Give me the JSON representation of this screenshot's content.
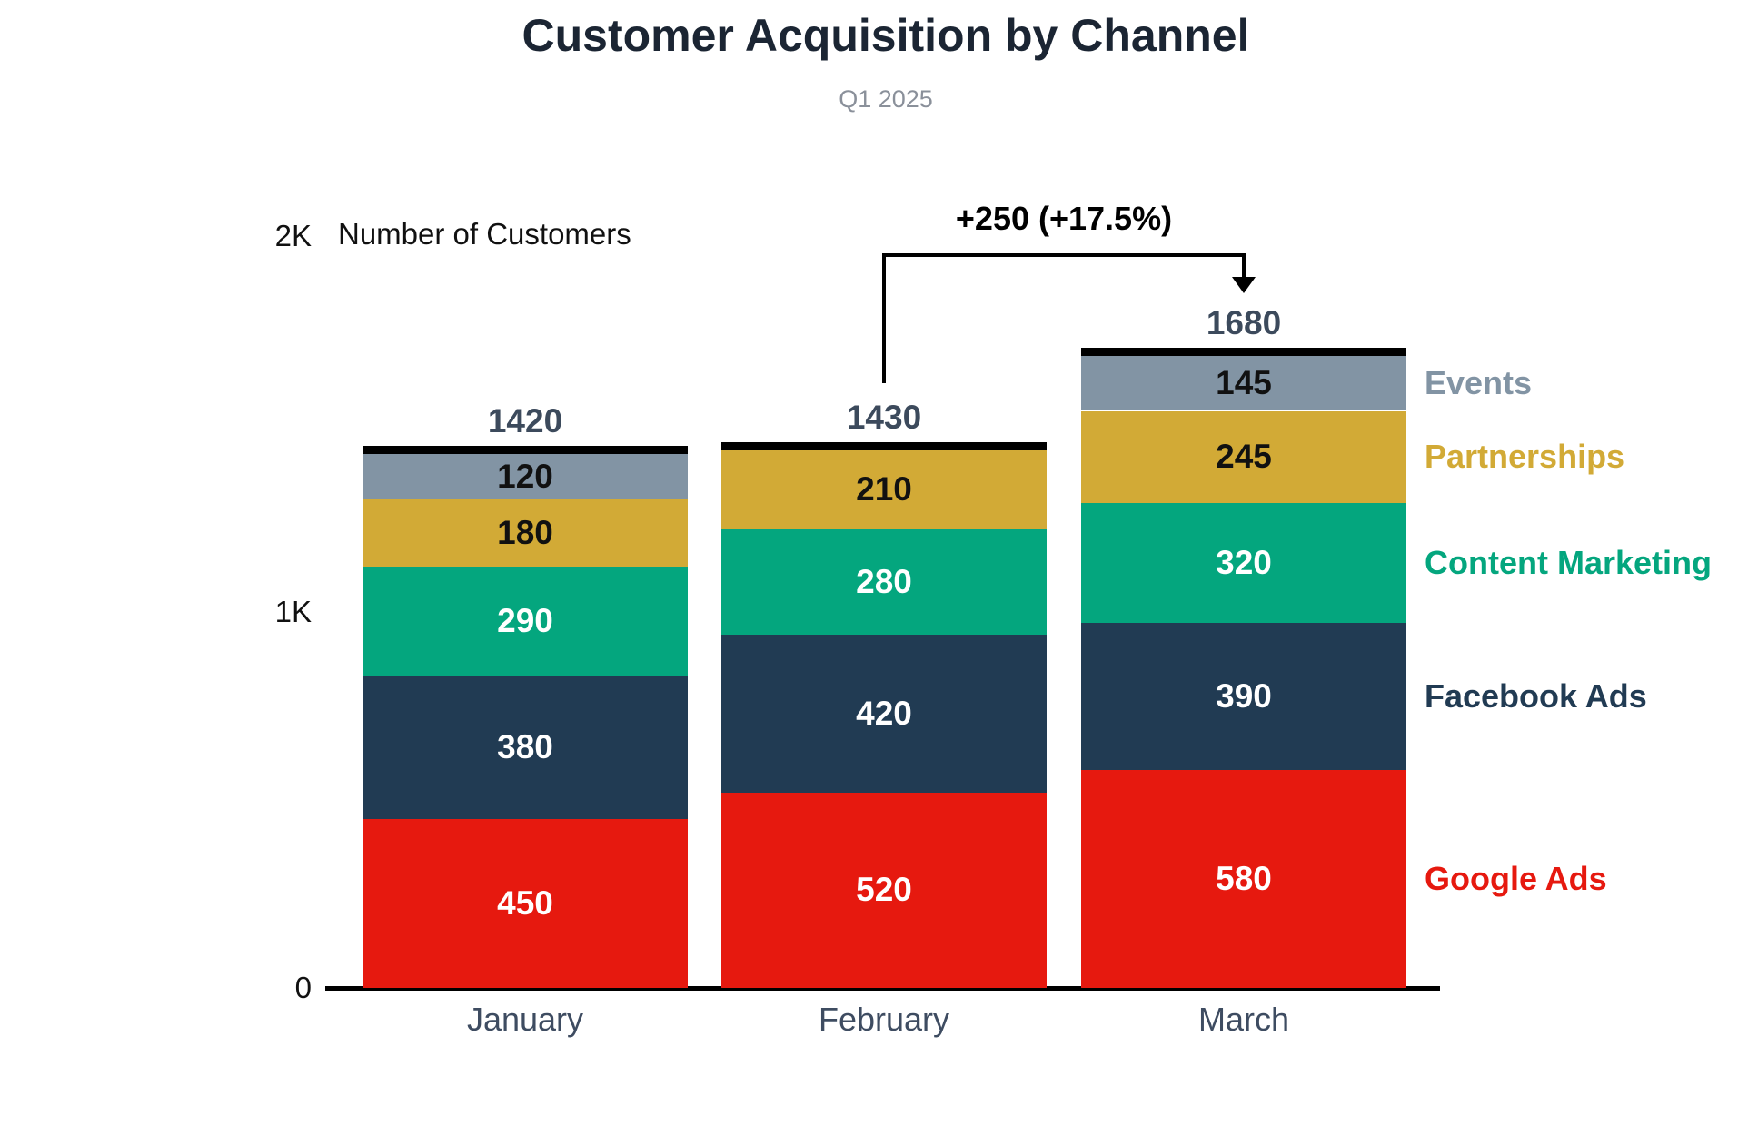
{
  "title": "Customer Acquisition by Channel",
  "subtitle": "Q1 2025",
  "chart_data": {
    "type": "bar",
    "stacked": true,
    "title": "Customer Acquisition by Channel",
    "subtitle": "Q1 2025",
    "categories": [
      "January",
      "February",
      "March"
    ],
    "series": [
      {
        "name": "Google Ads",
        "color": "#e6190f",
        "label_color": "#ffffff",
        "values": [
          450,
          520,
          580
        ]
      },
      {
        "name": "Facebook Ads",
        "color": "#213b53",
        "label_color": "#ffffff",
        "values": [
          380,
          420,
          390
        ]
      },
      {
        "name": "Content Marketing",
        "color": "#04a67e",
        "label_color": "#ffffff",
        "values": [
          290,
          280,
          320
        ]
      },
      {
        "name": "Partnerships",
        "color": "#d2aa36",
        "label_color": "#111111",
        "values": [
          180,
          210,
          245
        ]
      },
      {
        "name": "Events",
        "color": "#8294a4",
        "label_color": "#111111",
        "values": [
          120,
          0,
          145
        ]
      }
    ],
    "totals": [
      1420,
      1430,
      1680
    ],
    "xlabel": "",
    "ylabel": "Number of Customers",
    "ylim": [
      0,
      2000
    ],
    "yticks": [
      {
        "value": 0,
        "label": "0"
      },
      {
        "value": 1000,
        "label": "1K"
      },
      {
        "value": 2000,
        "label": "2K"
      }
    ],
    "grid": false,
    "legend_position": "right",
    "bar_total_cap": true,
    "annotation": {
      "text": "+250 (+17.5%)",
      "from_category": "February",
      "to_category": "March"
    },
    "text_colors": {
      "title": "#1b2533",
      "subtitle": "#8a909a",
      "total_label": "#3c4a5c",
      "month_label": "#3e4c61",
      "axis": "#111111",
      "annotation": "#000000"
    }
  }
}
